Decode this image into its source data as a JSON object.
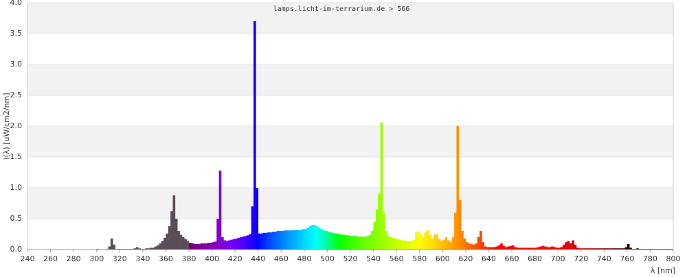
{
  "chart_data": {
    "type": "spectrum",
    "title": "lamps.licht-im-terrarium.de > 566",
    "x_label": "λ [nm]",
    "y_label": "I(λ)  [uW/cm2/nm]",
    "xlim": [
      240,
      800
    ],
    "ylim": [
      0,
      4
    ],
    "xticks": [
      240,
      260,
      280,
      300,
      320,
      340,
      360,
      380,
      400,
      420,
      440,
      460,
      480,
      500,
      520,
      540,
      560,
      580,
      600,
      620,
      640,
      660,
      680,
      700,
      720,
      740,
      760,
      780,
      800
    ],
    "yticks": [
      {
        "value": 0,
        "label": "0.0"
      },
      0.5,
      {
        "value": 1,
        "label": "1.0"
      },
      1.5,
      {
        "value": 2,
        "label": "2.0"
      },
      2.5,
      {
        "value": 3,
        "label": "3.0"
      },
      3.5,
      {
        "value": 4,
        "label": "4.0"
      }
    ],
    "grid": true,
    "x": [
      300,
      302,
      304,
      306,
      308,
      310,
      312,
      314,
      316,
      318,
      320,
      322,
      324,
      326,
      328,
      330,
      332,
      334,
      336,
      338,
      340,
      342,
      344,
      346,
      348,
      350,
      352,
      354,
      356,
      358,
      360,
      362,
      364,
      366,
      368,
      370,
      372,
      374,
      376,
      378,
      380,
      382,
      384,
      386,
      388,
      390,
      392,
      394,
      396,
      398,
      400,
      402,
      404,
      406,
      408,
      410,
      412,
      414,
      416,
      418,
      420,
      422,
      424,
      426,
      428,
      430,
      432,
      434,
      436,
      438,
      440,
      442,
      444,
      446,
      448,
      450,
      452,
      454,
      456,
      458,
      460,
      462,
      464,
      466,
      468,
      470,
      472,
      474,
      476,
      478,
      480,
      482,
      484,
      486,
      488,
      490,
      492,
      494,
      496,
      498,
      500,
      502,
      504,
      506,
      508,
      510,
      512,
      514,
      516,
      518,
      520,
      522,
      524,
      526,
      528,
      530,
      532,
      534,
      536,
      538,
      540,
      542,
      544,
      546,
      548,
      550,
      552,
      554,
      556,
      558,
      560,
      562,
      564,
      566,
      568,
      570,
      572,
      574,
      576,
      578,
      580,
      582,
      584,
      586,
      588,
      590,
      592,
      594,
      596,
      598,
      600,
      602,
      604,
      606,
      608,
      610,
      612,
      614,
      616,
      618,
      620,
      622,
      624,
      626,
      628,
      630,
      632,
      634,
      636,
      638,
      640,
      642,
      644,
      646,
      648,
      650,
      652,
      654,
      656,
      658,
      660,
      662,
      664,
      666,
      668,
      670,
      672,
      674,
      676,
      678,
      680,
      682,
      684,
      686,
      688,
      690,
      692,
      694,
      696,
      698,
      700,
      702,
      704,
      706,
      708,
      710,
      712,
      714,
      716,
      718,
      720,
      722,
      724,
      726,
      728,
      730,
      732,
      734,
      736,
      738,
      740,
      742,
      744,
      746,
      748,
      750,
      752,
      754,
      756,
      758,
      760,
      762,
      764,
      766,
      768,
      770,
      772,
      774,
      776,
      778,
      780,
      782,
      784,
      786,
      788,
      790,
      792,
      794,
      796,
      798
    ],
    "values": [
      0.01,
      0,
      0,
      0,
      0.01,
      0.05,
      0.18,
      0.08,
      0.01,
      0.01,
      0.01,
      0.01,
      0.01,
      0.01,
      0.01,
      0.01,
      0.02,
      0.04,
      0.02,
      0.01,
      0.01,
      0.02,
      0.02,
      0.03,
      0.03,
      0.05,
      0.07,
      0.1,
      0.14,
      0.19,
      0.26,
      0.38,
      0.62,
      0.88,
      0.5,
      0.3,
      0.24,
      0.2,
      0.17,
      0.14,
      0.11,
      0.1,
      0.09,
      0.09,
      0.09,
      0.1,
      0.1,
      0.1,
      0.11,
      0.11,
      0.12,
      0.13,
      0.5,
      1.28,
      0.2,
      0.15,
      0.14,
      0.15,
      0.16,
      0.17,
      0.18,
      0.19,
      0.2,
      0.21,
      0.22,
      0.23,
      0.25,
      0.7,
      3.7,
      1.0,
      0.26,
      0.26,
      0.27,
      0.27,
      0.28,
      0.28,
      0.29,
      0.29,
      0.3,
      0.3,
      0.3,
      0.31,
      0.31,
      0.31,
      0.31,
      0.32,
      0.32,
      0.32,
      0.32,
      0.33,
      0.33,
      0.35,
      0.38,
      0.4,
      0.4,
      0.38,
      0.35,
      0.33,
      0.31,
      0.3,
      0.29,
      0.28,
      0.27,
      0.26,
      0.26,
      0.25,
      0.24,
      0.24,
      0.23,
      0.23,
      0.22,
      0.22,
      0.22,
      0.21,
      0.21,
      0.21,
      0.21,
      0.22,
      0.24,
      0.3,
      0.45,
      0.65,
      0.9,
      2.06,
      0.6,
      0.3,
      0.22,
      0.2,
      0.19,
      0.18,
      0.17,
      0.16,
      0.15,
      0.15,
      0.14,
      0.14,
      0.14,
      0.16,
      0.28,
      0.3,
      0.25,
      0.2,
      0.28,
      0.32,
      0.24,
      0.18,
      0.24,
      0.25,
      0.17,
      0.14,
      0.16,
      0.2,
      0.15,
      0.12,
      0.2,
      0.6,
      2.0,
      0.8,
      0.3,
      0.18,
      0.12,
      0.1,
      0.09,
      0.08,
      0.1,
      0.2,
      0.3,
      0.12,
      0.05,
      0.04,
      0.04,
      0.04,
      0.04,
      0.05,
      0.07,
      0.1,
      0.06,
      0.04,
      0.05,
      0.06,
      0.07,
      0.04,
      0.03,
      0.03,
      0.03,
      0.03,
      0.03,
      0.03,
      0.03,
      0.03,
      0.03,
      0.04,
      0.05,
      0.06,
      0.05,
      0.04,
      0.04,
      0.05,
      0.04,
      0.03,
      0.03,
      0.04,
      0.08,
      0.12,
      0.14,
      0.1,
      0.15,
      0.08,
      0.03,
      0.02,
      0.02,
      0.02,
      0.02,
      0.02,
      0.02,
      0.02,
      0.02,
      0.02,
      0.02,
      0.02,
      0.02,
      0.02,
      0.02,
      0.02,
      0.02,
      0.02,
      0.02,
      0.02,
      0.02,
      0.04,
      0.09,
      0.03,
      0.01,
      0.01,
      0.02,
      0.01,
      0.01,
      0.01,
      0.01,
      0.01,
      0.01,
      0.01,
      0.01,
      0.01,
      0.01,
      0.01,
      0.01,
      0.01,
      0.01,
      0.01
    ]
  }
}
